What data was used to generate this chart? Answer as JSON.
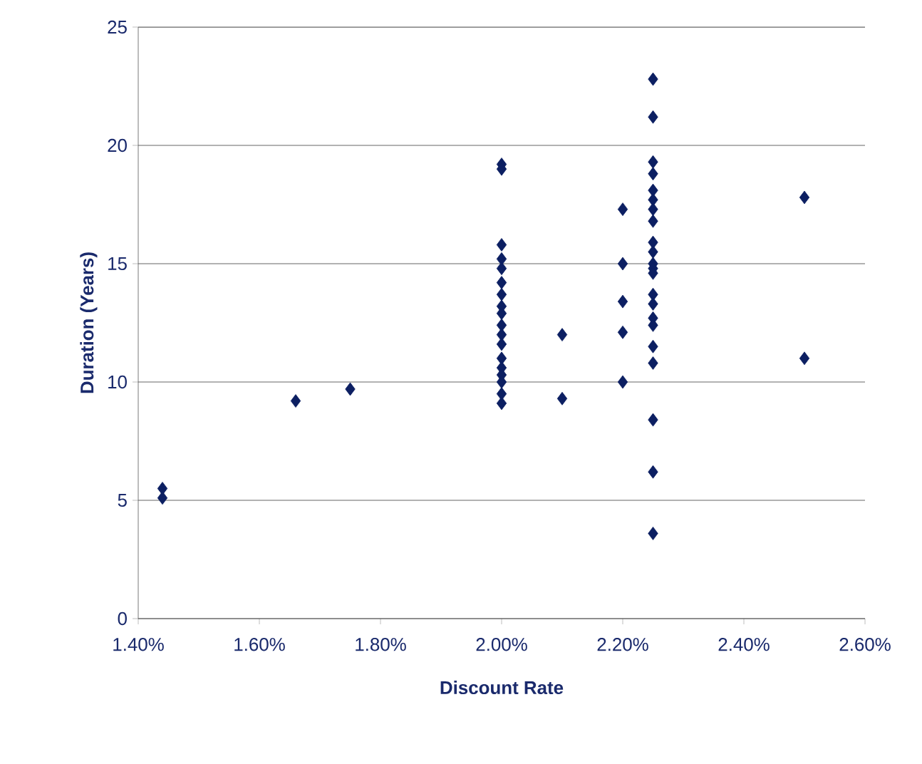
{
  "chart_data": {
    "type": "scatter",
    "xlabel": "Discount Rate",
    "ylabel": "Duration (Years)",
    "x": [
      1.44,
      1.44,
      1.66,
      1.75,
      2.0,
      2.0,
      2.0,
      2.0,
      2.0,
      2.0,
      2.0,
      2.0,
      2.0,
      2.0,
      2.0,
      2.0,
      2.0,
      2.0,
      2.0,
      2.0,
      2.0,
      2.0,
      2.1,
      2.1,
      2.2,
      2.2,
      2.2,
      2.2,
      2.2,
      2.25,
      2.25,
      2.25,
      2.25,
      2.25,
      2.25,
      2.25,
      2.25,
      2.25,
      2.25,
      2.25,
      2.25,
      2.25,
      2.25,
      2.25,
      2.25,
      2.25,
      2.25,
      2.25,
      2.25,
      2.25,
      2.25,
      2.5,
      2.5
    ],
    "values": [
      5.5,
      5.1,
      9.2,
      9.7,
      19.2,
      19.0,
      15.8,
      15.2,
      14.8,
      14.2,
      13.7,
      13.2,
      12.9,
      12.4,
      12.0,
      11.6,
      11.0,
      10.6,
      10.3,
      10.0,
      9.5,
      9.1,
      12.0,
      9.3,
      17.3,
      15.0,
      13.4,
      12.1,
      10.0,
      22.8,
      21.2,
      19.3,
      18.8,
      18.1,
      17.7,
      17.3,
      16.8,
      15.9,
      15.5,
      15.0,
      14.8,
      14.6,
      13.7,
      13.3,
      12.7,
      12.4,
      11.5,
      10.8,
      8.4,
      6.2,
      3.6,
      17.8,
      11.0
    ],
    "color": "#0c1f62",
    "marker": "diamond",
    "grid": "y",
    "xlim": [
      1.4,
      2.6
    ],
    "xticks": [
      {
        "value": 1.4,
        "label": "1.40%"
      },
      {
        "value": 1.6,
        "label": "1.60%"
      },
      {
        "value": 1.8,
        "label": "1.80%"
      },
      {
        "value": 2.0,
        "label": "2.00%"
      },
      {
        "value": 2.2,
        "label": "2.20%"
      },
      {
        "value": 2.4,
        "label": "2.40%"
      },
      {
        "value": 2.6,
        "label": "2.60%"
      }
    ],
    "ylim": [
      0,
      25
    ],
    "yticks": [
      0,
      5,
      10,
      15,
      20,
      25
    ]
  }
}
